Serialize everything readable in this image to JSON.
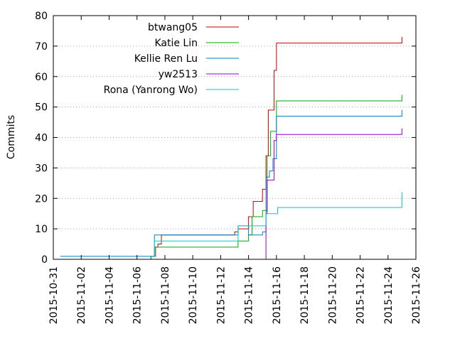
{
  "chart_data": {
    "type": "line",
    "title": "",
    "xlabel": "",
    "ylabel": "Commits",
    "ylim": [
      0,
      80
    ],
    "xlim": [
      "2015-10-31",
      "2015-11-26"
    ],
    "yticks": [
      "0",
      "10",
      "20",
      "30",
      "40",
      "50",
      "60",
      "70",
      "80"
    ],
    "xticks": [
      "2015-10-31",
      "2015-11-02",
      "2015-11-04",
      "2015-11-06",
      "2015-11-08",
      "2015-11-10",
      "2015-11-12",
      "2015-11-14",
      "2015-11-16",
      "2015-11-18",
      "2015-11-20",
      "2015-11-22",
      "2015-11-24",
      "2015-11-26"
    ],
    "grid": "horizontal dotted",
    "legend_position": "top-left",
    "series": [
      {
        "name": "btwang05",
        "color": "#cc0000",
        "points": [
          [
            "2015-11-01",
            0
          ],
          [
            "2015-11-07",
            1
          ],
          [
            "2015-11-07 08:00",
            4
          ],
          [
            "2015-11-07 12:00",
            5
          ],
          [
            "2015-11-07 18:00",
            8
          ],
          [
            "2015-11-13",
            9
          ],
          [
            "2015-11-13 06:00",
            10
          ],
          [
            "2015-11-14",
            14
          ],
          [
            "2015-11-14 08:00",
            19
          ],
          [
            "2015-11-15",
            23
          ],
          [
            "2015-11-15 06:00",
            34
          ],
          [
            "2015-11-15 10:00",
            49
          ],
          [
            "2015-11-15 20:00",
            62
          ],
          [
            "2015-11-16",
            71
          ],
          [
            "2015-11-25",
            71
          ],
          [
            "2015-11-25",
            73
          ]
        ]
      },
      {
        "name": "Katie Lin",
        "color": "#00aa00",
        "points": [
          [
            "2015-11-01",
            0
          ],
          [
            "2015-11-07",
            1
          ],
          [
            "2015-11-07 06:00",
            4
          ],
          [
            "2015-11-13",
            4
          ],
          [
            "2015-11-13 06:00",
            6
          ],
          [
            "2015-11-14",
            8
          ],
          [
            "2015-11-14 06:00",
            14
          ],
          [
            "2015-11-15",
            16
          ],
          [
            "2015-11-15 08:00",
            34
          ],
          [
            "2015-11-15 14:00",
            42
          ],
          [
            "2015-11-16",
            52
          ],
          [
            "2015-11-25",
            52
          ],
          [
            "2015-11-25",
            54
          ]
        ]
      },
      {
        "name": "Kellie Ren Lu",
        "color": "#0080c0",
        "points": [
          [
            "2015-10-31 12:00",
            1
          ],
          [
            "2015-11-07",
            1
          ],
          [
            "2015-11-07 06:00",
            8
          ],
          [
            "2015-11-13",
            8
          ],
          [
            "2015-11-13 06:00",
            11
          ],
          [
            "2015-11-14",
            8
          ],
          [
            "2015-11-15",
            9
          ],
          [
            "2015-11-15 06:00",
            27
          ],
          [
            "2015-11-15 12:00",
            29
          ],
          [
            "2015-11-15 18:00",
            33
          ],
          [
            "2015-11-16",
            47
          ],
          [
            "2015-11-25",
            47
          ],
          [
            "2015-11-25",
            49
          ]
        ]
      },
      {
        "name": "yw2513",
        "color": "#9900cc",
        "points": [
          [
            "2015-11-15",
            0
          ],
          [
            "2015-11-15 06:00",
            15
          ],
          [
            "2015-11-15 08:00",
            26
          ],
          [
            "2015-11-15 18:00",
            26
          ],
          [
            "2015-11-15 20:00",
            39
          ],
          [
            "2015-11-16",
            41
          ],
          [
            "2015-11-25",
            41
          ],
          [
            "2015-11-25",
            43
          ]
        ]
      },
      {
        "name": "Rona (Yanrong Wo)",
        "color": "#00cccc",
        "points": [
          [
            "2015-11-07",
            1
          ],
          [
            "2015-11-07 06:00",
            6
          ],
          [
            "2015-11-13",
            6
          ],
          [
            "2015-11-13 06:00",
            11
          ],
          [
            "2015-11-15",
            11
          ],
          [
            "2015-11-15 06:00",
            15
          ],
          [
            "2015-11-16",
            15
          ],
          [
            "2015-11-16 02:00",
            17
          ],
          [
            "2015-11-25",
            18
          ],
          [
            "2015-11-25",
            22
          ]
        ]
      }
    ]
  }
}
